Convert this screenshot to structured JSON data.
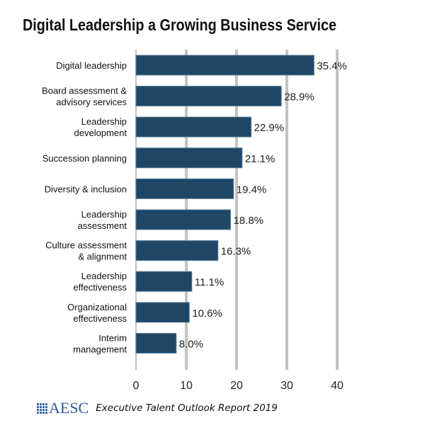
{
  "chart_data": {
    "type": "bar",
    "orientation": "horizontal",
    "title": "Digital Leadership a Growing Business Service",
    "categories": [
      "Digital leadership",
      "Board assessment & advisory services",
      "Leadership development",
      "Succession planning",
      "Diversity & inclusion",
      "Leadership assessment",
      "Culture assessment & alignment",
      "Leadership effectiveness",
      "Organizational effectiveness",
      "Interim management"
    ],
    "category_lines": [
      [
        "Digital leadership"
      ],
      [
        "Board assessment &",
        "advisory services"
      ],
      [
        "Leadership",
        "development"
      ],
      [
        "Succession planning"
      ],
      [
        "Diversity & inclusion"
      ],
      [
        "Leadership",
        "assessment"
      ],
      [
        "Culture assessment",
        "& alignment"
      ],
      [
        "Leadership",
        "effectiveness"
      ],
      [
        "Organizational",
        "effectiveness"
      ],
      [
        "Interim",
        "management"
      ]
    ],
    "values": [
      35.4,
      28.9,
      22.9,
      21.1,
      19.4,
      18.8,
      16.3,
      11.1,
      10.6,
      8.0
    ],
    "data_labels": [
      "35.4%",
      "28.9%",
      "22.9%",
      "21.1%",
      "19.4%",
      "18.8%",
      "16.3%",
      "11.1%",
      "10.6%",
      "8.0%"
    ],
    "xlim": [
      0,
      40
    ],
    "xticks": [
      "0",
      "10",
      "20",
      "30",
      "40"
    ],
    "xtick_values": [
      0,
      10,
      20,
      30,
      40
    ],
    "grid": "vertical",
    "xlabel": "",
    "ylabel": "",
    "bar_color": "#1f4765",
    "grid_color": "#c3c3c3"
  },
  "footer": {
    "logo_text": "AESC",
    "report": "Executive Talent Outlook Report 2019"
  }
}
